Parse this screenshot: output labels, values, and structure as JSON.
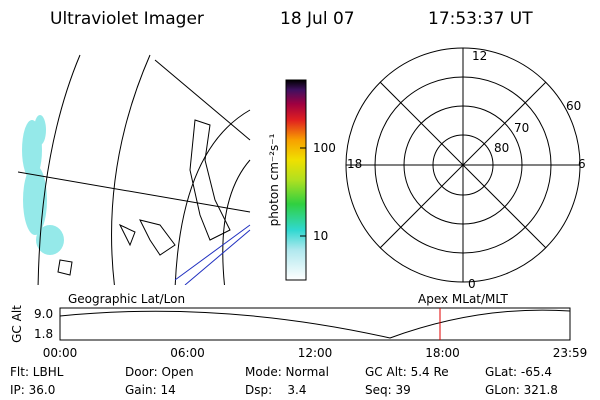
{
  "header": {
    "title": "Ultraviolet Imager",
    "date": "18 Jul 07",
    "time": "17:53:37 UT"
  },
  "colorbar": {
    "label": "photon cm⁻²s⁻¹",
    "ticks": [
      "100",
      "10"
    ]
  },
  "polar": {
    "hours": [
      "12",
      "18",
      "6",
      "0"
    ],
    "latitudes": [
      "60",
      "70",
      "80"
    ]
  },
  "orbit": {
    "left_label": "Geographic Lat/Lon",
    "right_label": "Apex MLat/MLT",
    "axis_label": "GC Alt",
    "y_ticks": [
      "9.0",
      "1.8"
    ],
    "x_ticks": [
      "00:00",
      "06:00",
      "12:00",
      "18:00",
      "23:59"
    ]
  },
  "status": {
    "rows": [
      [
        "Flt: LBHL",
        "Door: Open",
        "Mode: Normal",
        "GC Alt: 5.4 Re",
        "GLat: -65.4"
      ],
      [
        "IP: 36.0",
        "Gain: 14",
        "Dsp:    3.4",
        "Seq: 39",
        "GLon: 321.8"
      ]
    ]
  }
}
